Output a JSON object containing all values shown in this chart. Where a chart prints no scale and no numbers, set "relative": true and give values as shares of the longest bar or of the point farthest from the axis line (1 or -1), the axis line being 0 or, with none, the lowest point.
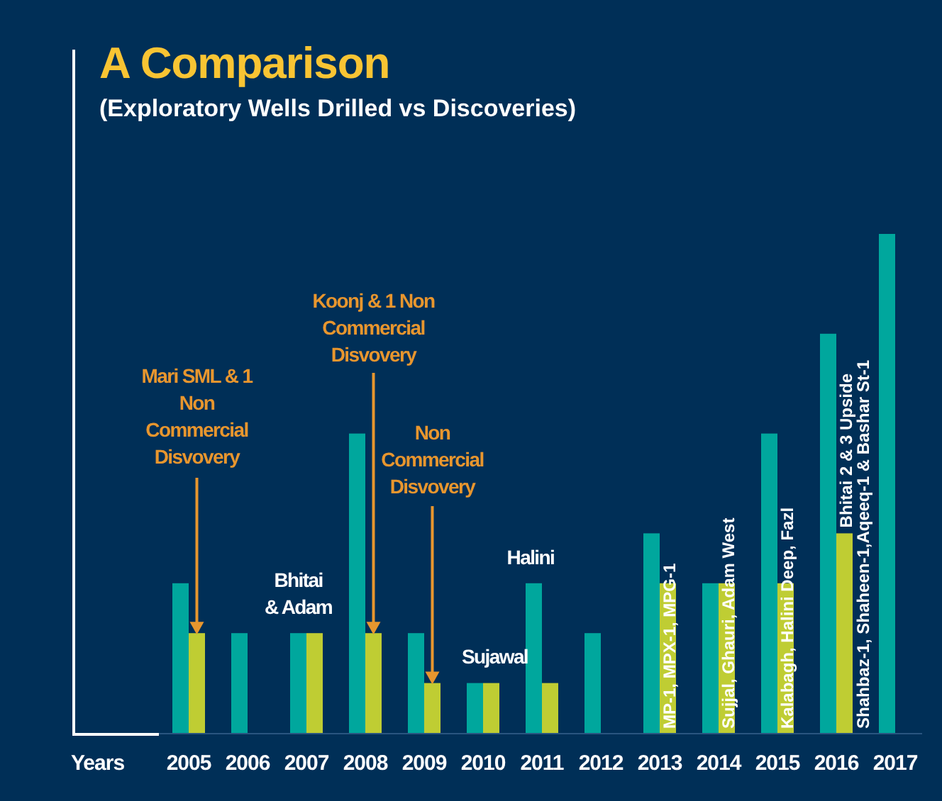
{
  "chart_data": {
    "type": "bar",
    "title": "A Comparison",
    "subtitle": "(Exploratory Wells Drilled vs Discoveries)",
    "xlabel": "Years",
    "relative": true,
    "categories": [
      "2005",
      "2006",
      "2007",
      "2008",
      "2009",
      "2010",
      "2011",
      "2012",
      "2013",
      "2014",
      "2015",
      "2016",
      "2017"
    ],
    "series": [
      {
        "color": "#00a79d",
        "values": [
          0.3,
          0.2,
          0.2,
          0.6,
          0.2,
          0.1,
          0.3,
          0.2,
          0.4,
          0.3,
          0.6,
          0.8,
          1
        ]
      },
      {
        "color": "#bfcd33",
        "values": [
          0.2,
          0,
          0.2,
          0.2,
          0.1,
          0.1,
          0.1,
          0,
          0.3,
          0.3,
          0.3,
          0.4,
          0
        ]
      }
    ],
    "annotations": [
      "Mari SML & 1 Non Commercial Disvovery",
      {
        "text": "Bhitai & Adam",
        "x": "2007",
        "y": 0.2
      },
      "Koonj & 1 Non Commercial Disvovery",
      "Non Commercial Disvovery",
      {
        "text": "Sujawal",
        "x": "2010",
        "y": 0.1
      },
      {
        "text": "Halini",
        "x": "2011",
        "y": 0.3
      },
      {
        "text": "MP-1, MPX-1, MPG-1",
        "x": "2013",
        "y": 0.3
      },
      {
        "text": "Sujjal, Ghauri, Adam West",
        "x": "2014",
        "y": 0.3
      },
      {
        "text": "Kalabagh, Halini Deep, Fazl",
        "x": "2015",
        "y": 0.3
      },
      {
        "text": "Bhitai 2 & 3 Upside",
        "x": "2016",
        "y": 0.4
      },
      {
        "text": "Shahbaz-1, Shaheen-1,Aqeeq-1 & Bashar St-1",
        "x": "2016",
        "y": 0
      }
    ]
  }
}
